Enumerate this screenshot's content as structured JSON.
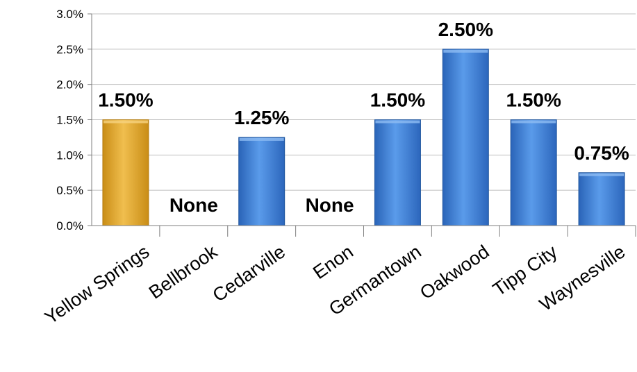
{
  "chart_data": {
    "type": "bar",
    "categories": [
      "Yellow Springs",
      "Bellbrook",
      "Cedarville",
      "Enon",
      "Germantown",
      "Oakwood",
      "Tipp City",
      "Waynesville"
    ],
    "values": [
      1.5,
      0,
      1.25,
      0,
      1.5,
      2.5,
      1.5,
      0.75
    ],
    "data_labels": [
      "1.50%",
      "None",
      "1.25%",
      "None",
      "1.50%",
      "2.50%",
      "1.50%",
      "0.75%"
    ],
    "highlight_index": 0,
    "colors": {
      "highlight": "#E2A72E",
      "bar": "#3B7DD8",
      "grid": "#BFBFBF",
      "axis": "#7F7F7F"
    },
    "ylim": [
      0,
      3.0
    ],
    "yticks": [
      "0.0%",
      "0.5%",
      "1.0%",
      "1.5%",
      "2.0%",
      "2.5%",
      "3.0%"
    ],
    "grid": true,
    "legend": "none"
  }
}
